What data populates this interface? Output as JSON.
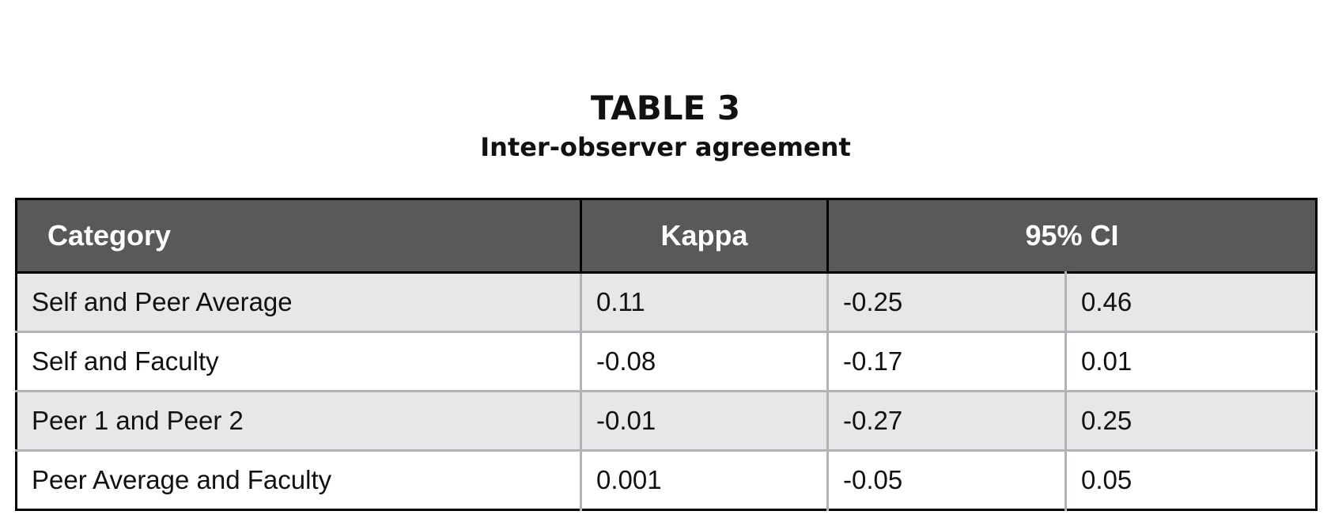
{
  "header": {
    "title": "TABLE 3",
    "subtitle": "Inter-observer agreement"
  },
  "table": {
    "columns": [
      "Category",
      "Kappa",
      "95% CI"
    ],
    "rows": [
      [
        "Self and Peer Average",
        "0.11",
        "-0.25",
        "0.46"
      ],
      [
        "Self and Faculty",
        "-0.08",
        "-0.17",
        "0.01"
      ],
      [
        "Peer 1 and Peer 2",
        "-0.01",
        "-0.27",
        "0.25"
      ],
      [
        "Peer Average and Faculty",
        "0.001",
        "-0.05",
        "0.05"
      ]
    ]
  }
}
